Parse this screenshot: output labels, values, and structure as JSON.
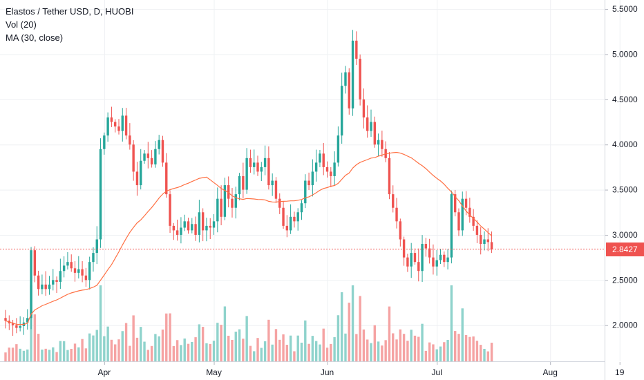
{
  "legend": {
    "symbol": "Elastos / Tether USD, D, HUOBI",
    "volume": "Vol (20)",
    "ma": "MA (30, close)"
  },
  "last_price_label": "2.8427",
  "colors": {
    "up": "#26a69a",
    "down": "#ef5350",
    "vol_up": "#8fd3cc",
    "vol_down": "#f5a3a3",
    "ma": "#ff7043",
    "grid": "#eef0f3",
    "axis_text": "#131722"
  },
  "chart_data": {
    "type": "candlestick",
    "title": "Elastos / Tether USD, D, HUOBI",
    "ylim": [
      1.6,
      5.6
    ],
    "y_ticks": [
      "2.0000",
      "2.5000",
      "3.0000",
      "3.5000",
      "4.0000",
      "4.5000",
      "5.0000",
      "5.5000"
    ],
    "y_tick_values": [
      2.0,
      2.5,
      3.0,
      3.5,
      4.0,
      4.5,
      5.0,
      5.5
    ],
    "x_ticks": [
      "Apr",
      "May",
      "Jun",
      "Jul",
      "Aug",
      "19"
    ],
    "x_tick_days": [
      27,
      57,
      88,
      118,
      149,
      168
    ],
    "last_price": 2.8427,
    "ma_period": 30,
    "volume_period": 20,
    "close_series": [
      2.05,
      2.02,
      2.0,
      1.97,
      1.99,
      2.03,
      2.08,
      2.83,
      2.55,
      2.4,
      2.45,
      2.4,
      2.45,
      2.5,
      2.48,
      2.6,
      2.66,
      2.7,
      2.63,
      2.58,
      2.62,
      2.55,
      2.5,
      2.7,
      2.8,
      2.95,
      3.95,
      4.1,
      4.3,
      4.25,
      4.2,
      4.15,
      4.32,
      4.1,
      4.0,
      3.7,
      3.55,
      3.82,
      3.9,
      3.85,
      3.78,
      3.95,
      4.05,
      3.8,
      3.45,
      3.1,
      3.05,
      3.0,
      3.08,
      3.15,
      3.05,
      3.12,
      3.0,
      3.25,
      3.05,
      3.1,
      3.08,
      3.15,
      3.4,
      3.2,
      3.55,
      3.4,
      3.3,
      3.45,
      3.65,
      3.5,
      3.85,
      3.75,
      3.8,
      3.7,
      3.75,
      3.85,
      3.55,
      3.6,
      3.4,
      3.3,
      3.1,
      3.05,
      3.2,
      3.15,
      3.25,
      3.35,
      3.6,
      3.55,
      3.7,
      3.8,
      3.9,
      3.75,
      3.7,
      3.65,
      3.8,
      4.1,
      4.65,
      4.8,
      4.4,
      5.15,
      4.95,
      4.5,
      4.3,
      4.15,
      4.25,
      4.0,
      4.05,
      3.95,
      3.85,
      3.45,
      3.3,
      3.15,
      2.95,
      2.75,
      2.65,
      2.8,
      2.7,
      2.6,
      2.9,
      2.85,
      2.75,
      2.65,
      2.72,
      2.78,
      2.7,
      2.75,
      3.45,
      3.25,
      3.05,
      3.4,
      3.3,
      3.2,
      3.1,
      3.0,
      2.9,
      2.95,
      2.92,
      2.84
    ]
  }
}
